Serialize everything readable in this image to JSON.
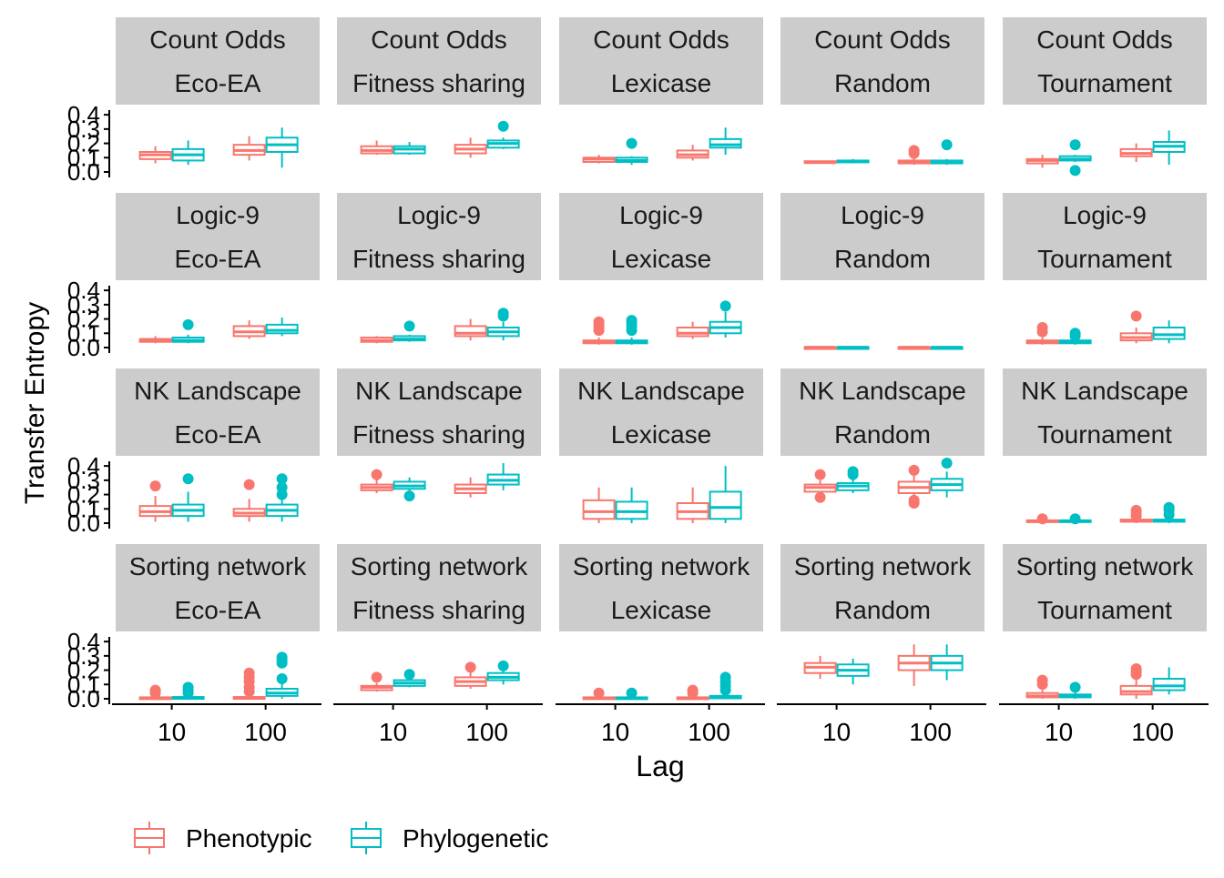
{
  "chart_data": {
    "type": "boxplot",
    "title": "",
    "xlabel": "Lag",
    "ylabel": "Transfer Entropy",
    "y_ticks": [
      "0.0",
      "0.1",
      "0.2",
      "0.3",
      "0.4"
    ],
    "ylim": [
      0,
      0.42
    ],
    "x_categories": [
      "10",
      "100"
    ],
    "legend": {
      "position": "bottom-left",
      "entries": [
        {
          "name": "Phenotypic",
          "color": "#F8766D"
        },
        {
          "name": "Phylogenetic",
          "color": "#00BFC4"
        }
      ]
    },
    "row_labels": [
      "Count Odds",
      "Logic-9",
      "NK Landscape",
      "Sorting network"
    ],
    "col_labels": [
      "Eco-EA",
      "Fitness sharing",
      "Lexicase",
      "Random",
      "Tournament"
    ],
    "facets": [
      [
        {
          "lag10": {
            "phen": [
              0.06,
              0.09,
              0.12,
              0.14,
              0.18
            ],
            "phyl": [
              0.05,
              0.08,
              0.12,
              0.16,
              0.22
            ]
          },
          "lag100": {
            "phen": [
              0.08,
              0.12,
              0.15,
              0.19,
              0.25
            ],
            "phyl": [
              0.03,
              0.14,
              0.19,
              0.24,
              0.31
            ],
            "phyl_out": []
          }
        },
        {
          "lag10": {
            "phen": [
              0.12,
              0.13,
              0.15,
              0.18,
              0.22
            ],
            "phyl": [
              0.12,
              0.13,
              0.16,
              0.18,
              0.21
            ]
          },
          "lag100": {
            "phen": [
              0.1,
              0.13,
              0.16,
              0.19,
              0.24
            ],
            "phyl": [
              0.16,
              0.17,
              0.2,
              0.22,
              0.24
            ],
            "phyl_out": [
              0.32
            ]
          }
        },
        {
          "lag10": {
            "phen": [
              0.06,
              0.07,
              0.09,
              0.1,
              0.12
            ],
            "phyl": [
              0.05,
              0.07,
              0.08,
              0.1,
              0.11
            ],
            "phyl_out": [
              0.2
            ]
          },
          "lag100": {
            "phen": [
              0.08,
              0.1,
              0.12,
              0.15,
              0.19
            ],
            "phyl": [
              0.12,
              0.17,
              0.19,
              0.23,
              0.31
            ]
          }
        },
        {
          "lag10": {
            "phen": [
              0.06,
              0.065,
              0.07,
              0.075,
              0.08
            ],
            "phyl": [
              0.06,
              0.07,
              0.075,
              0.08,
              0.09
            ]
          },
          "lag100": {
            "phen": [
              0.05,
              0.06,
              0.07,
              0.08,
              0.1
            ],
            "phen_out": [
              0.13,
              0.15
            ],
            "phyl": [
              0.05,
              0.06,
              0.065,
              0.08,
              0.09
            ],
            "phyl_out": [
              0.19
            ]
          }
        },
        {
          "lag10": {
            "phen": [
              0.03,
              0.06,
              0.08,
              0.09,
              0.12
            ],
            "phyl": [
              0.07,
              0.08,
              0.09,
              0.11,
              0.12
            ],
            "phyl_out": [
              0.01,
              0.19
            ]
          },
          "lag100": {
            "phen": [
              0.07,
              0.11,
              0.13,
              0.16,
              0.2
            ],
            "phyl": [
              0.05,
              0.14,
              0.18,
              0.21,
              0.29
            ]
          }
        }
      ],
      [
        {
          "lag10": {
            "phen": [
              0.03,
              0.04,
              0.05,
              0.06,
              0.08
            ],
            "phyl": [
              0.03,
              0.04,
              0.05,
              0.07,
              0.09
            ],
            "phyl_out": [
              0.16
            ]
          },
          "lag100": {
            "phen": [
              0.06,
              0.08,
              0.11,
              0.15,
              0.19
            ],
            "phyl": [
              0.08,
              0.1,
              0.12,
              0.16,
              0.21
            ]
          }
        },
        {
          "lag10": {
            "phen": [
              0.03,
              0.04,
              0.05,
              0.07,
              0.08
            ],
            "phyl": [
              0.04,
              0.05,
              0.06,
              0.08,
              0.09
            ],
            "phyl_out": [
              0.15
            ]
          },
          "lag100": {
            "phen": [
              0.05,
              0.08,
              0.1,
              0.15,
              0.2
            ],
            "phyl": [
              0.05,
              0.08,
              0.11,
              0.14,
              0.18
            ],
            "phyl_out": [
              0.22,
              0.24
            ]
          }
        },
        {
          "lag10": {
            "phen": [
              0.02,
              0.03,
              0.04,
              0.05,
              0.07
            ],
            "phen_out": [
              0.12,
              0.14,
              0.16,
              0.18
            ],
            "phyl": [
              0.02,
              0.03,
              0.04,
              0.05,
              0.07
            ],
            "phyl_out": [
              0.12,
              0.15,
              0.17,
              0.19
            ]
          },
          "lag100": {
            "phen": [
              0.06,
              0.08,
              0.1,
              0.14,
              0.18
            ],
            "phyl": [
              0.07,
              0.1,
              0.14,
              0.18,
              0.25
            ],
            "phyl_out": [
              0.29
            ]
          }
        },
        {
          "lag10": {
            "phen": [
              0.0,
              0.001,
              0.002,
              0.003,
              0.004
            ],
            "phyl": [
              0.0,
              0.001,
              0.002,
              0.003,
              0.004
            ]
          },
          "lag100": {
            "phen": [
              0.0,
              0.001,
              0.002,
              0.003,
              0.004
            ],
            "phyl": [
              0.0,
              0.001,
              0.002,
              0.003,
              0.004
            ]
          }
        },
        {
          "lag10": {
            "phen": [
              0.02,
              0.03,
              0.04,
              0.05,
              0.07
            ],
            "phen_out": [
              0.11,
              0.14
            ],
            "phyl": [
              0.02,
              0.03,
              0.04,
              0.05,
              0.06
            ],
            "phyl_out": [
              0.08,
              0.1
            ]
          },
          "lag100": {
            "phen": [
              0.03,
              0.05,
              0.07,
              0.1,
              0.14
            ],
            "phen_out": [
              0.22
            ],
            "phyl": [
              0.03,
              0.06,
              0.09,
              0.14,
              0.19
            ]
          }
        }
      ],
      [
        {
          "lag10": {
            "phen": [
              0.01,
              0.05,
              0.08,
              0.12,
              0.19
            ],
            "phen_out": [
              0.26
            ],
            "phyl": [
              0.01,
              0.05,
              0.09,
              0.13,
              0.22
            ],
            "phyl_out": [
              0.31
            ]
          },
          "lag100": {
            "phen": [
              0.01,
              0.05,
              0.07,
              0.1,
              0.17
            ],
            "phen_out": [
              0.27
            ],
            "phyl": [
              0.01,
              0.05,
              0.09,
              0.13,
              0.21
            ],
            "phyl_out": [
              0.2,
              0.25,
              0.31
            ]
          }
        },
        {
          "lag10": {
            "phen": [
              0.21,
              0.23,
              0.25,
              0.27,
              0.31
            ],
            "phen_out": [
              0.34
            ],
            "phyl": [
              0.21,
              0.24,
              0.26,
              0.29,
              0.32
            ],
            "phyl_out": [
              0.19
            ]
          },
          "lag100": {
            "phen": [
              0.18,
              0.21,
              0.24,
              0.27,
              0.32
            ],
            "phyl": [
              0.23,
              0.27,
              0.3,
              0.34,
              0.42
            ]
          }
        },
        {
          "lag10": {
            "phen": [
              0.0,
              0.03,
              0.08,
              0.16,
              0.25
            ],
            "phyl": [
              0.0,
              0.03,
              0.08,
              0.15,
              0.25
            ]
          },
          "lag100": {
            "phen": [
              0.0,
              0.03,
              0.08,
              0.14,
              0.25
            ],
            "phyl": [
              0.0,
              0.03,
              0.11,
              0.22,
              0.4
            ]
          }
        },
        {
          "lag10": {
            "phen": [
              0.2,
              0.22,
              0.25,
              0.27,
              0.3
            ],
            "phen_out": [
              0.18,
              0.34
            ],
            "phyl": [
              0.21,
              0.23,
              0.26,
              0.28,
              0.32
            ],
            "phyl_out": [
              0.34,
              0.36
            ]
          },
          "lag100": {
            "phen": [
              0.17,
              0.21,
              0.25,
              0.29,
              0.34
            ],
            "phen_out": [
              0.14,
              0.16,
              0.37
            ],
            "phyl": [
              0.18,
              0.23,
              0.27,
              0.31,
              0.36
            ],
            "phyl_out": [
              0.42
            ]
          }
        },
        {
          "lag10": {
            "phen": [
              0.0,
              0.01,
              0.015,
              0.02,
              0.025
            ],
            "phen_out": [
              0.03
            ],
            "phyl": [
              0.0,
              0.01,
              0.015,
              0.02,
              0.025
            ],
            "phyl_out": [
              0.03
            ]
          },
          "lag100": {
            "phen": [
              0.0,
              0.01,
              0.02,
              0.025,
              0.03
            ],
            "phen_out": [
              0.05,
              0.07,
              0.09
            ],
            "phyl": [
              0.0,
              0.01,
              0.02,
              0.025,
              0.03
            ],
            "phyl_out": [
              0.06,
              0.09,
              0.11
            ]
          }
        }
      ],
      [
        {
          "lag10": {
            "phen": [
              0.0,
              0.003,
              0.006,
              0.01,
              0.02
            ],
            "phen_out": [
              0.04,
              0.06
            ],
            "phyl": [
              0.0,
              0.003,
              0.008,
              0.012,
              0.02
            ],
            "phyl_out": [
              0.04,
              0.06,
              0.08
            ]
          },
          "lag100": {
            "phen": [
              0.0,
              0.003,
              0.008,
              0.012,
              0.02
            ],
            "phen_out": [
              0.05,
              0.08,
              0.12,
              0.15,
              0.18
            ],
            "phyl": [
              0.0,
              0.02,
              0.04,
              0.07,
              0.11
            ],
            "phyl_out": [
              0.14,
              0.25,
              0.27,
              0.29
            ]
          }
        },
        {
          "lag10": {
            "phen": [
              0.05,
              0.06,
              0.08,
              0.09,
              0.11
            ],
            "phen_out": [
              0.15
            ],
            "phyl": [
              0.08,
              0.09,
              0.11,
              0.13,
              0.15
            ],
            "phyl_out": [
              0.17
            ]
          },
          "lag100": {
            "phen": [
              0.07,
              0.09,
              0.12,
              0.15,
              0.19
            ],
            "phen_out": [
              0.22
            ],
            "phyl": [
              0.1,
              0.13,
              0.15,
              0.18,
              0.2
            ],
            "phyl_out": [
              0.23
            ]
          }
        },
        {
          "lag10": {
            "phen": [
              0.0,
              0.003,
              0.006,
              0.01,
              0.02
            ],
            "phen_out": [
              0.04
            ],
            "phyl": [
              0.0,
              0.003,
              0.006,
              0.01,
              0.02
            ],
            "phyl_out": [
              0.04
            ]
          },
          "lag100": {
            "phen": [
              0.0,
              0.003,
              0.006,
              0.01,
              0.02
            ],
            "phen_out": [
              0.04,
              0.06
            ],
            "phyl": [
              0.0,
              0.003,
              0.01,
              0.02,
              0.04
            ],
            "phyl_out": [
              0.06,
              0.09,
              0.12,
              0.15
            ]
          }
        },
        {
          "lag10": {
            "phen": [
              0.14,
              0.18,
              0.22,
              0.25,
              0.3
            ],
            "phyl": [
              0.1,
              0.16,
              0.2,
              0.24,
              0.28
            ]
          },
          "lag100": {
            "phen": [
              0.09,
              0.2,
              0.25,
              0.3,
              0.38
            ],
            "phyl": [
              0.13,
              0.2,
              0.25,
              0.3,
              0.38
            ]
          }
        },
        {
          "lag10": {
            "phen": [
              0.0,
              0.01,
              0.02,
              0.04,
              0.06
            ],
            "phen_out": [
              0.1,
              0.13
            ],
            "phyl": [
              0.0,
              0.01,
              0.02,
              0.03,
              0.05
            ],
            "phyl_out": [
              0.08
            ]
          },
          "lag100": {
            "phen": [
              0.0,
              0.03,
              0.05,
              0.09,
              0.14
            ],
            "phen_out": [
              0.17,
              0.19,
              0.21
            ],
            "phyl": [
              0.03,
              0.06,
              0.09,
              0.14,
              0.22
            ]
          }
        }
      ]
    ]
  }
}
